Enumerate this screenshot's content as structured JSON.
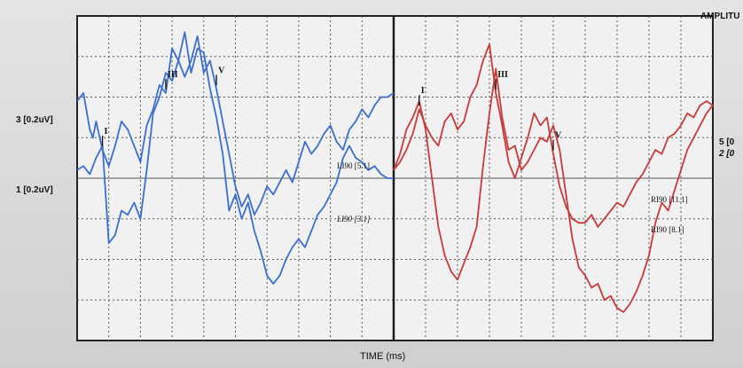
{
  "header": {
    "amplitude_label": "AMPLITU"
  },
  "footer": {
    "xlabel": "TIME (ms)"
  },
  "left_axis": {
    "scale_top": "3 [0.2uV]",
    "scale_bottom": "1 [0.2uV]"
  },
  "right_axis": {
    "scale_top": "5 [0",
    "scale_bottom": "2 [0"
  },
  "colors": {
    "left_trace": "#3a6fd0",
    "right_trace": "#c83a3a",
    "grid": "#555555",
    "frame": "#222222"
  },
  "chart_data": [
    {
      "type": "line",
      "panel": "left",
      "xlabel": "TIME (ms)",
      "xlim": [
        0,
        10
      ],
      "ylim": [
        0,
        8
      ],
      "grid": true,
      "series": [
        {
          "name": "LI90 [5.1]",
          "peak_labels": [
            {
              "text": "I",
              "x": 0.8
            },
            {
              "text": "III",
              "x": 2.9
            },
            {
              "text": "V",
              "x": 4.4
            }
          ],
          "x": [
            0,
            0.2,
            0.4,
            0.5,
            0.6,
            0.8,
            1.0,
            1.2,
            1.4,
            1.6,
            1.8,
            2.0,
            2.2,
            2.4,
            2.6,
            2.8,
            3.0,
            3.2,
            3.4,
            3.6,
            3.8,
            4.0,
            4.2,
            4.4,
            4.6,
            4.8,
            5.0,
            5.2,
            5.4,
            5.6,
            5.8,
            6.0,
            6.2,
            6.4,
            6.6,
            6.8,
            7.0,
            7.2,
            7.4,
            7.6,
            7.8,
            8.0,
            8.2,
            8.4,
            8.6,
            8.8,
            9.0,
            9.2,
            9.4,
            9.6,
            9.8,
            10.0
          ],
          "y": [
            5.9,
            6.1,
            5.2,
            5.0,
            5.4,
            4.7,
            4.3,
            4.8,
            5.4,
            5.2,
            4.8,
            4.4,
            5.3,
            5.7,
            6.3,
            6.1,
            7.2,
            6.9,
            6.5,
            6.9,
            7.5,
            6.6,
            6.9,
            6.2,
            5.4,
            4.6,
            3.8,
            3.3,
            3.6,
            3.1,
            3.4,
            3.8,
            3.6,
            3.9,
            4.2,
            3.9,
            4.4,
            4.9,
            4.6,
            4.8,
            5.1,
            5.3,
            4.9,
            4.7,
            5.2,
            5.4,
            5.7,
            5.5,
            5.8,
            6.0,
            6.0,
            6.1
          ]
        },
        {
          "name": "LI90 [3.1]",
          "x": [
            0,
            0.2,
            0.4,
            0.6,
            0.8,
            1.0,
            1.2,
            1.4,
            1.6,
            1.8,
            2.0,
            2.2,
            2.4,
            2.6,
            2.8,
            3.0,
            3.2,
            3.4,
            3.6,
            3.8,
            4.0,
            4.2,
            4.4,
            4.6,
            4.8,
            5.0,
            5.2,
            5.4,
            5.6,
            5.8,
            6.0,
            6.2,
            6.4,
            6.6,
            6.8,
            7.0,
            7.2,
            7.4,
            7.6,
            7.8,
            8.0,
            8.2,
            8.4,
            8.6,
            8.8,
            9.0,
            9.2,
            9.4,
            9.6,
            9.8,
            10.0
          ],
          "y": [
            4.2,
            4.3,
            4.1,
            4.5,
            4.8,
            2.4,
            2.6,
            3.2,
            3.1,
            3.4,
            3.0,
            4.2,
            5.6,
            6.0,
            6.6,
            6.4,
            6.9,
            7.6,
            6.6,
            7.2,
            7.1,
            6.2,
            5.5,
            4.6,
            3.2,
            3.6,
            3.0,
            3.4,
            2.7,
            2.2,
            1.6,
            1.4,
            1.6,
            2.0,
            2.3,
            2.5,
            2.3,
            2.7,
            3.1,
            3.3,
            3.6,
            3.9,
            4.5,
            4.8,
            4.5,
            4.4,
            4.2,
            4.3,
            4.1,
            4.0,
            4.0
          ]
        }
      ]
    },
    {
      "type": "line",
      "panel": "right",
      "xlabel": "TIME (ms)",
      "xlim": [
        0,
        10
      ],
      "ylim": [
        0,
        8
      ],
      "grid": true,
      "series": [
        {
          "name": "RI90 [11.1]",
          "peak_labels": [
            {
              "text": "I",
              "x": 0.8
            },
            {
              "text": "III",
              "x": 3.3
            },
            {
              "text": "V",
              "x": 4.9
            }
          ],
          "x": [
            0,
            0.2,
            0.4,
            0.6,
            0.8,
            1.0,
            1.2,
            1.4,
            1.6,
            1.8,
            2.0,
            2.2,
            2.4,
            2.6,
            2.8,
            3.0,
            3.2,
            3.4,
            3.6,
            3.8,
            4.0,
            4.2,
            4.4,
            4.6,
            4.8,
            5.0,
            5.2,
            5.4,
            5.6,
            5.8,
            6.0,
            6.2,
            6.4,
            6.6,
            6.8,
            7.0,
            7.2,
            7.4,
            7.6,
            7.8,
            8.0,
            8.2,
            8.4,
            8.6,
            8.8,
            9.0,
            9.2,
            9.4,
            9.6,
            9.8,
            10.0
          ],
          "y": [
            4.2,
            4.4,
            4.7,
            5.1,
            5.7,
            5.3,
            5.0,
            4.8,
            5.4,
            5.6,
            5.2,
            5.4,
            6.0,
            6.3,
            6.9,
            7.3,
            6.1,
            5.3,
            4.4,
            4.0,
            4.5,
            5.0,
            5.6,
            5.3,
            5.5,
            4.6,
            3.8,
            3.3,
            3.0,
            2.9,
            2.9,
            3.1,
            2.8,
            3.0,
            3.2,
            3.4,
            3.3,
            3.6,
            3.9,
            4.1,
            4.4,
            4.7,
            4.6,
            5.0,
            5.1,
            5.3,
            5.6,
            5.5,
            5.8,
            5.9,
            5.8
          ]
        },
        {
          "name": "RI90 [8.1]",
          "x": [
            0,
            0.2,
            0.4,
            0.6,
            0.8,
            1.0,
            1.2,
            1.4,
            1.6,
            1.8,
            2.0,
            2.2,
            2.4,
            2.6,
            2.8,
            3.0,
            3.2,
            3.4,
            3.6,
            3.8,
            4.0,
            4.2,
            4.4,
            4.6,
            4.8,
            5.0,
            5.2,
            5.4,
            5.6,
            5.8,
            6.0,
            6.2,
            6.4,
            6.6,
            6.8,
            7.0,
            7.2,
            7.4,
            7.6,
            7.8,
            8.0,
            8.2,
            8.4,
            8.6,
            8.8,
            9.0,
            9.2,
            9.4,
            9.6,
            9.8,
            10.0
          ],
          "y": [
            4.2,
            4.6,
            5.2,
            5.5,
            5.9,
            5.2,
            4.0,
            2.8,
            2.1,
            1.7,
            1.5,
            1.9,
            2.3,
            2.8,
            4.3,
            5.6,
            6.7,
            5.5,
            4.7,
            4.8,
            4.2,
            4.4,
            4.7,
            5.0,
            4.9,
            5.3,
            4.7,
            3.6,
            2.5,
            1.8,
            1.6,
            1.3,
            1.4,
            1.0,
            1.1,
            0.8,
            0.7,
            0.9,
            1.2,
            1.6,
            2.1,
            2.9,
            3.4,
            3.2,
            3.7,
            4.2,
            4.7,
            5.0,
            5.3,
            5.6,
            5.8
          ]
        }
      ]
    }
  ]
}
